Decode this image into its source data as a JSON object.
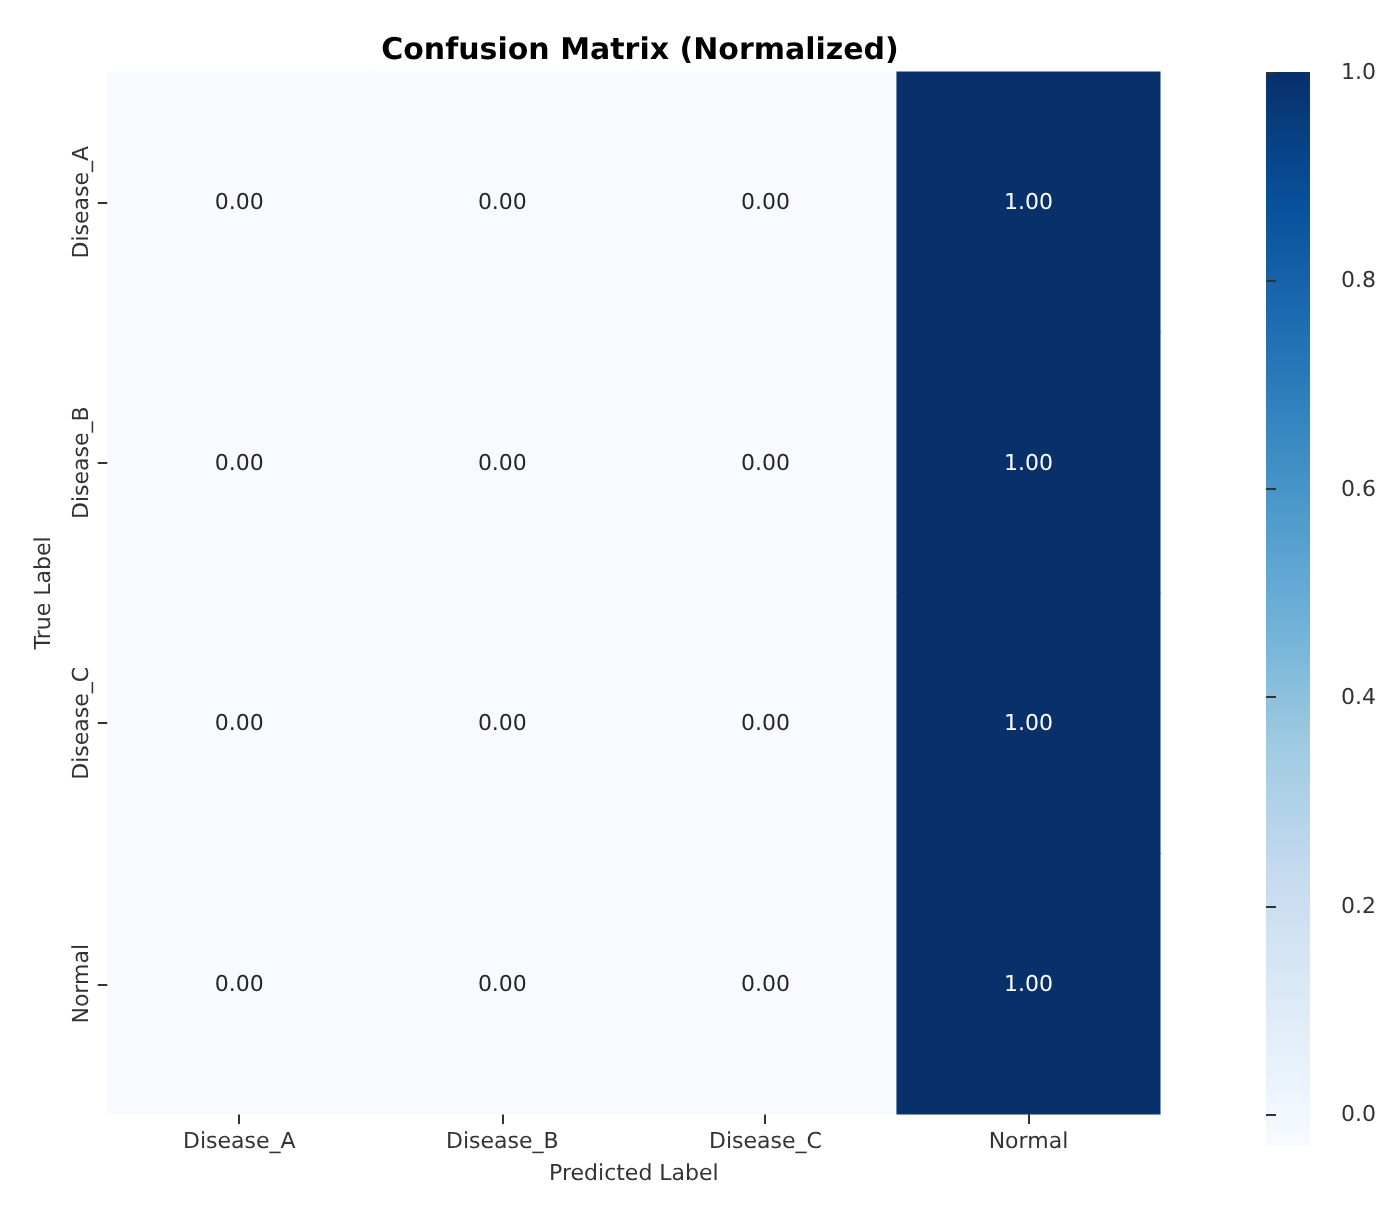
{
  "chart_data": {
    "type": "heatmap",
    "title": "Confusion Matrix (Normalized)",
    "xlabel": "Predicted Label",
    "ylabel": "True Label",
    "categories": [
      "Disease_A",
      "Disease_B",
      "Disease_C",
      "Normal"
    ],
    "y_categories": [
      "Disease_A",
      "Disease_B",
      "Disease_C",
      "Normal"
    ],
    "cells": [
      [
        0,
        0,
        0,
        1
      ],
      [
        0,
        0,
        0,
        1
      ],
      [
        0,
        0,
        0,
        1
      ],
      [
        0,
        0,
        0,
        1
      ]
    ],
    "cell_labels": [
      [
        "0.00",
        "0.00",
        "0.00",
        "1.00"
      ],
      [
        "0.00",
        "0.00",
        "0.00",
        "1.00"
      ],
      [
        "0.00",
        "0.00",
        "0.00",
        "1.00"
      ],
      [
        "0.00",
        "0.00",
        "0.00",
        "1.00"
      ]
    ],
    "clim": [
      0,
      1
    ],
    "cticks": [
      {
        "value": 0,
        "label": "0.0"
      },
      {
        "value": 0.2,
        "label": "0.2"
      },
      {
        "value": 0.4,
        "label": "0.4"
      },
      {
        "value": 0.6,
        "label": "0.6"
      },
      {
        "value": 0.8,
        "label": "0.8"
      },
      {
        "value": 1,
        "label": "1.0"
      }
    ]
  }
}
